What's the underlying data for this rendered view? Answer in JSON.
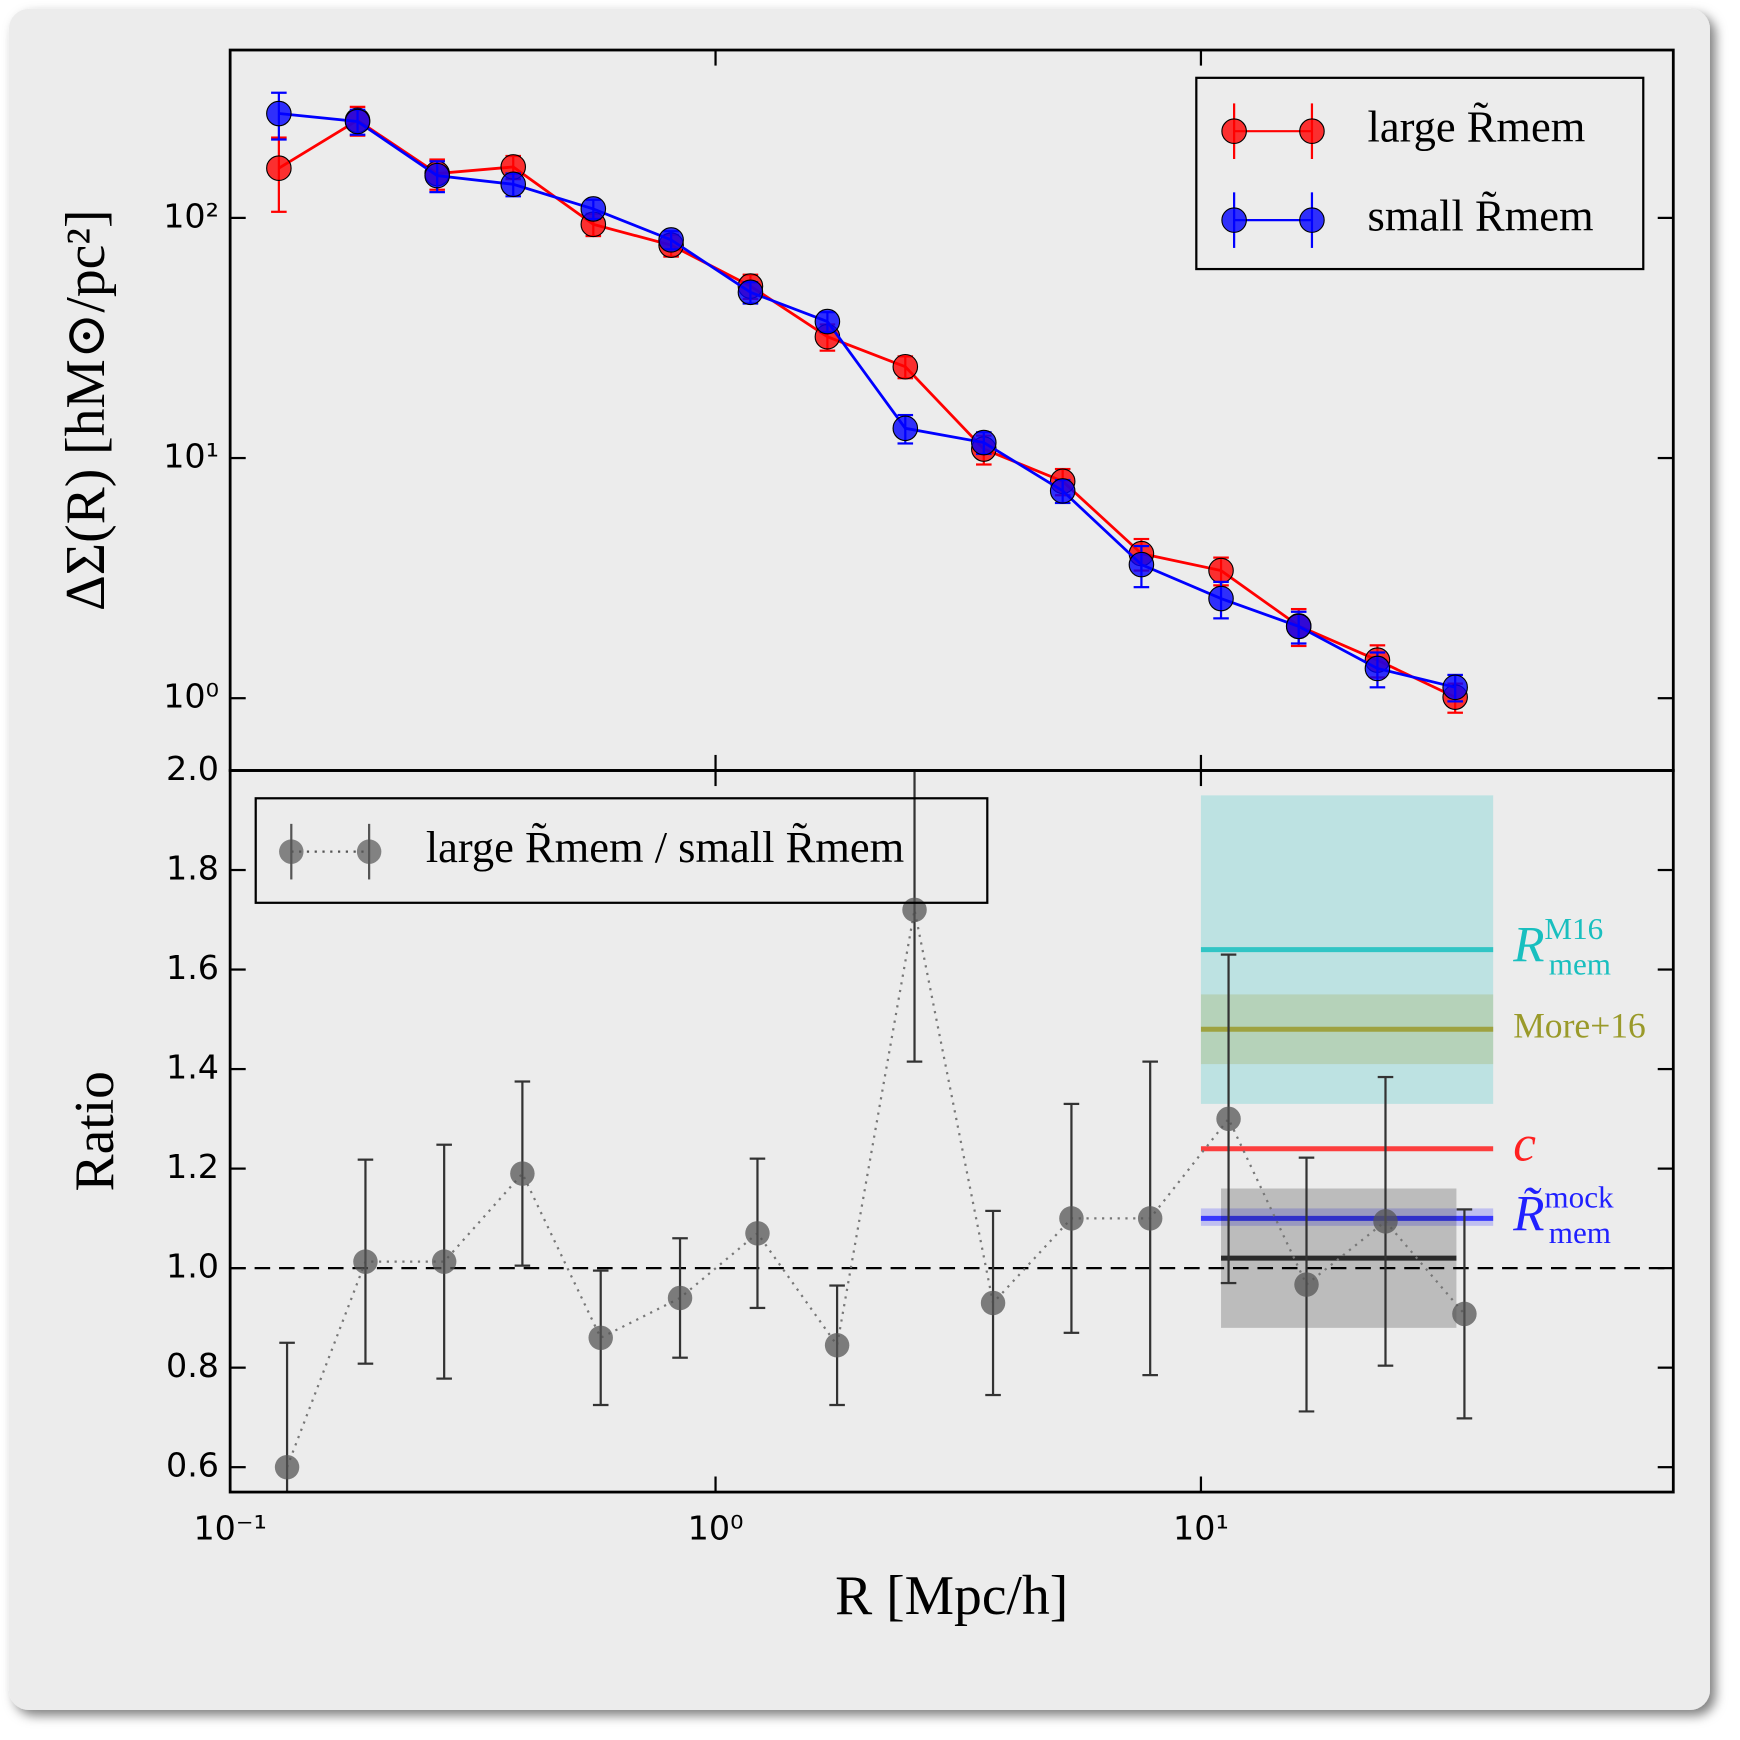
{
  "chart_data": [
    {
      "type": "line",
      "ylabel": "ΔΣ(R) [hM⊙/pc²]",
      "xlog": true,
      "ylog": true,
      "xlim": [
        0.1,
        94
      ],
      "ylim": [
        0.5,
        500
      ],
      "yticks": [
        {
          "value": 1,
          "label": "10⁰"
        },
        {
          "value": 10,
          "label": "10¹"
        },
        {
          "value": 100,
          "label": "10²"
        }
      ],
      "x": [
        0.126,
        0.183,
        0.267,
        0.383,
        0.56,
        0.81,
        1.18,
        1.7,
        2.46,
        3.57,
        5.19,
        7.54,
        11.0,
        15.9,
        23.1,
        33.4
      ],
      "series": [
        {
          "name": "large R̃mem",
          "color": "#ff0000",
          "values": [
            161,
            255,
            153,
            163,
            94,
            77,
            52,
            32,
            24,
            10.9,
            8.0,
            4.0,
            3.4,
            2.0,
            1.44,
            1.01
          ],
          "errors": [
            55,
            35,
            22,
            18,
            10,
            8,
            6,
            4,
            2.5,
            1.5,
            1.0,
            0.6,
            0.45,
            0.35,
            0.22,
            0.14
          ]
        },
        {
          "name": "small R̃mem",
          "color": "#0000ff",
          "values": [
            272,
            252,
            150,
            138,
            109,
            81,
            49,
            37,
            13.3,
            11.6,
            7.3,
            3.6,
            2.6,
            1.99,
            1.33,
            1.11
          ],
          "errors": [
            60,
            30,
            22,
            15,
            10,
            7,
            5,
            3.5,
            1.8,
            1.2,
            0.8,
            0.7,
            0.45,
            0.3,
            0.22,
            0.14
          ]
        }
      ],
      "legend": "upper right"
    },
    {
      "type": "errorbar",
      "xlabel": "R [Mpc/h]",
      "ylabel": "Ratio",
      "xlog": true,
      "xlim": [
        0.1,
        94
      ],
      "ylim": [
        0.55,
        2.0
      ],
      "xticks": [
        {
          "value": 0.1,
          "label": "10⁻¹"
        },
        {
          "value": 1,
          "label": "10⁰"
        },
        {
          "value": 10,
          "label": "10¹"
        }
      ],
      "yticks": [
        0.6,
        0.8,
        {
          "value": 1.0,
          "label": "1.0"
        },
        1.2,
        1.4,
        1.6,
        1.8,
        {
          "value": 2.0,
          "label": "2.0"
        }
      ],
      "x": [
        0.131,
        0.19,
        0.276,
        0.4,
        0.58,
        0.845,
        1.22,
        1.78,
        2.57,
        3.73,
        5.41,
        7.86,
        11.4,
        16.5,
        24.0,
        34.9
      ],
      "series": [
        {
          "name": "large R̃mem / small R̃mem",
          "color": "#555555",
          "values": [
            0.6,
            1.013,
            1.013,
            1.19,
            0.86,
            0.94,
            1.07,
            0.845,
            1.72,
            0.93,
            1.1,
            1.1,
            1.3,
            0.967,
            1.094,
            0.908
          ],
          "errors": [
            0.25,
            0.205,
            0.235,
            0.185,
            0.135,
            0.12,
            0.15,
            0.12,
            0.305,
            0.185,
            0.23,
            0.315,
            0.33,
            0.255,
            0.29,
            0.21
          ]
        }
      ],
      "hline": 1.0,
      "bands": [
        {
          "label": {
            "base": "R",
            "sup": "M16",
            "sub": "mem"
          },
          "color": "#19bfbf",
          "value": 1.64,
          "low": 1.33,
          "high": 1.95,
          "xrange": [
            10,
            40
          ]
        },
        {
          "label": {
            "base": "More+16"
          },
          "color": "#9a9a2a",
          "value": 1.48,
          "low": 1.41,
          "high": 1.55,
          "xrange": [
            10,
            40
          ]
        },
        {
          "label": {
            "base": "c"
          },
          "color": "#ff2020",
          "value": 1.24,
          "xrange": [
            10,
            40
          ]
        },
        {
          "label": {
            "base": "R̃",
            "sup": "mock",
            "sub": "mem"
          },
          "color": "#2020ff",
          "value": 1.1,
          "low": 1.085,
          "high": 1.12,
          "xrange": [
            10,
            40
          ]
        },
        {
          "color": "#111111",
          "value": 1.02,
          "low": 0.88,
          "high": 1.16,
          "xrange": [
            11,
            33.6
          ]
        }
      ],
      "legend": "upper left"
    }
  ]
}
